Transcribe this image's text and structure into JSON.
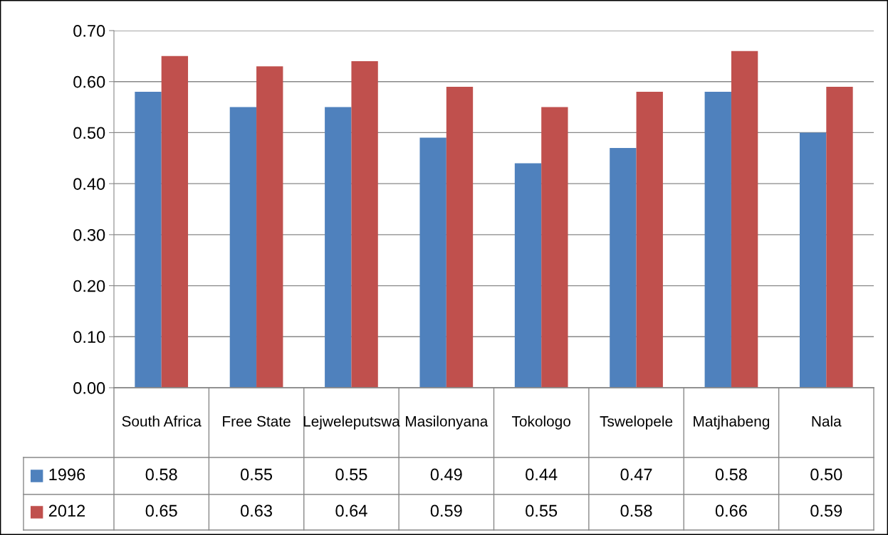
{
  "chart_data": {
    "type": "bar",
    "categories": [
      "South Africa",
      "Free State",
      "Lejweleputswa",
      "Masilonyana",
      "Tokologo",
      "Tswelopele",
      "Matjhabeng",
      "Nala"
    ],
    "series": [
      {
        "name": "1996",
        "color": "#4f81bd",
        "values": [
          0.58,
          0.55,
          0.55,
          0.49,
          0.44,
          0.47,
          0.58,
          0.5
        ],
        "value_labels": [
          "0.58",
          "0.55",
          "0.55",
          "0.49",
          "0.44",
          "0.47",
          "0.58",
          "0.50"
        ]
      },
      {
        "name": "2012",
        "color": "#c0504d",
        "values": [
          0.65,
          0.63,
          0.64,
          0.59,
          0.55,
          0.58,
          0.66,
          0.59
        ],
        "value_labels": [
          "0.65",
          "0.63",
          "0.64",
          "0.59",
          "0.55",
          "0.58",
          "0.66",
          "0.59"
        ]
      }
    ],
    "ylim": [
      0,
      0.7
    ],
    "yticks": [
      {
        "value": 0,
        "label": "0.00"
      },
      {
        "value": 0.1,
        "label": "0.10"
      },
      {
        "value": 0.2,
        "label": "0.20"
      },
      {
        "value": 0.3,
        "label": "0.30"
      },
      {
        "value": 0.4,
        "label": "0.40"
      },
      {
        "value": 0.5,
        "label": "0.50"
      },
      {
        "value": 0.6,
        "label": "0.60"
      },
      {
        "value": 0.7,
        "label": "0.70"
      }
    ],
    "grid": "y",
    "legend": "bottom"
  }
}
